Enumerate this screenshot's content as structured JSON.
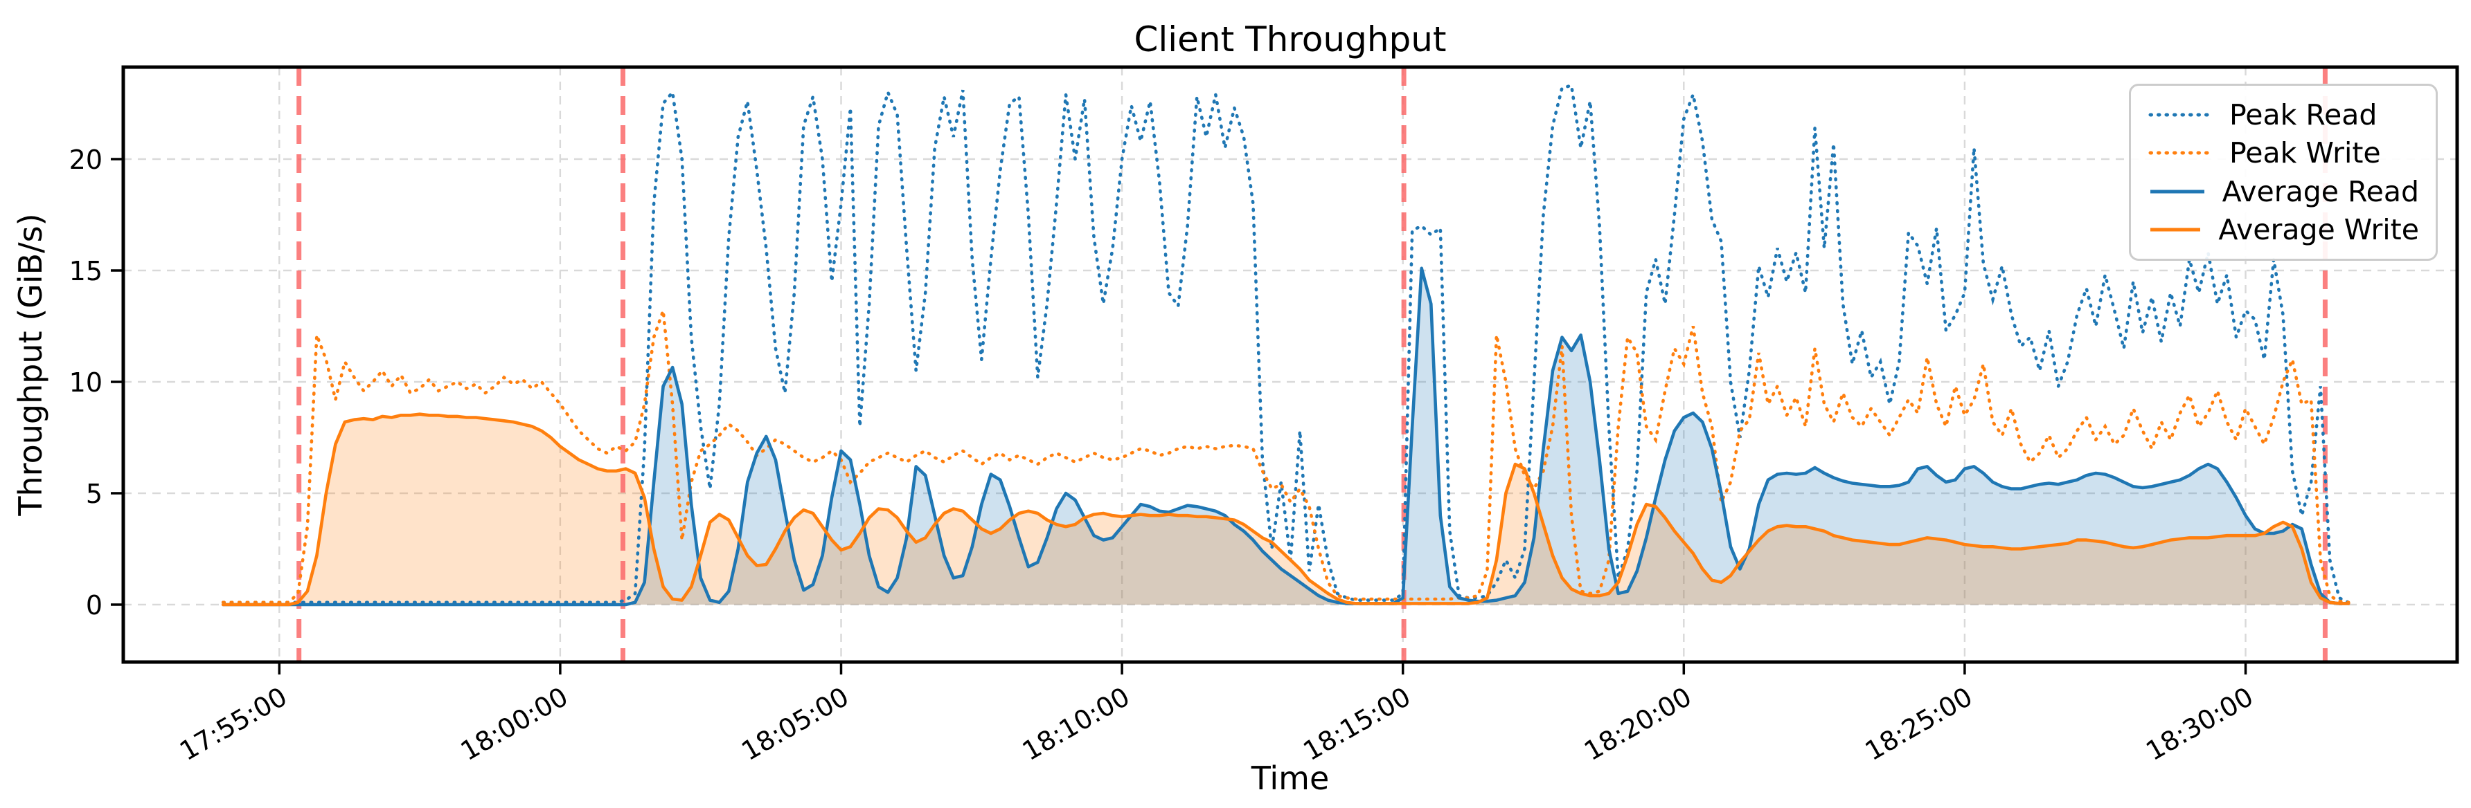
{
  "chart_data": {
    "type": "line",
    "title": "Client Throughput",
    "xlabel": "Time",
    "ylabel": "Throughput (GiB/s)",
    "grid": true,
    "legend_position": "upper right",
    "x_axis": {
      "start_time": "17:54:00",
      "step_seconds": 10,
      "range": [
        "17:52:15",
        "18:33:45"
      ],
      "ticks": [
        "17:55:00",
        "18:00:00",
        "18:05:00",
        "18:10:00",
        "18:15:00",
        "18:20:00",
        "18:25:00",
        "18:30:00"
      ]
    },
    "y_axis": {
      "min": -2.6,
      "max": 24.2,
      "ticks": [
        0,
        5,
        10,
        15,
        20
      ]
    },
    "event_lines": {
      "color": "#fb6a6a",
      "style": "dashed",
      "times": [
        "17:55:21",
        "18:01:07",
        "18:15:01",
        "18:31:25"
      ]
    },
    "series": [
      {
        "name": "Peak Read",
        "color": "#1f77b4",
        "style": "dotted",
        "fill": false,
        "values": [
          0.1,
          0.1,
          0.1,
          0.1,
          0.1,
          0.1,
          0.1,
          0.1,
          0.1,
          0.1,
          0.1,
          0.1,
          0.1,
          0.1,
          0.1,
          0.1,
          0.1,
          0.1,
          0.1,
          0.1,
          0.1,
          0.1,
          0.1,
          0.1,
          0.1,
          0.1,
          0.1,
          0.1,
          0.1,
          0.1,
          0.1,
          0.1,
          0.1,
          0.1,
          0.1,
          0.1,
          0.1,
          0.1,
          0.1,
          0.1,
          0.1,
          0.1,
          0.1,
          0.2,
          0.5,
          7,
          18,
          22.5,
          23.0,
          20,
          12,
          8,
          5.2,
          9,
          16.5,
          21.0,
          22.6,
          19.5,
          16,
          11.5,
          9.5,
          14,
          21.5,
          22.8,
          20,
          14.5,
          18,
          22.3,
          8.0,
          13.5,
          21.5,
          23.0,
          22.0,
          16,
          10.5,
          14,
          20.5,
          22.8,
          21,
          23.1,
          15.5,
          11,
          15.5,
          19.5,
          22.5,
          22.8,
          17.5,
          10.2,
          13.5,
          18,
          22.9,
          20,
          22.7,
          16.5,
          13.5,
          16.0,
          20.0,
          22.4,
          20.8,
          22.6,
          19,
          14,
          13.4,
          17,
          22.8,
          21,
          22.9,
          20.5,
          22.3,
          21,
          18,
          6.5,
          2.5,
          5.5,
          2.0,
          7.8,
          1.5,
          4.5,
          2.0,
          0.5,
          0.3,
          0.2,
          0.2,
          0.2,
          0.2,
          0.2,
          0.5,
          16.8,
          17.0,
          16.6,
          16.9,
          3.3,
          0.4,
          0.3,
          0.3,
          0.4,
          1.0,
          2.0,
          1.2,
          2.5,
          10,
          17.5,
          21.5,
          23.2,
          23.3,
          20.5,
          22.6,
          17,
          8,
          1.2,
          2.5,
          6,
          14,
          15.5,
          13.5,
          17.5,
          21.8,
          22.9,
          20.8,
          17.3,
          16.3,
          10,
          7.5,
          10.5,
          15.2,
          13.8,
          16,
          14.5,
          15.8,
          14,
          21.4,
          16,
          20.7,
          13.5,
          10.8,
          12.3,
          10.2,
          10.9,
          9.0,
          10.9,
          16.7,
          16.1,
          14.4,
          16.9,
          12.3,
          13.0,
          14.0,
          20.5,
          15.3,
          13.7,
          15.2,
          13.0,
          11.6,
          12.0,
          10.5,
          12.3,
          9.8,
          10.9,
          13.0,
          14.2,
          12.5,
          14.8,
          13.2,
          11.5,
          14.5,
          12.2,
          13.8,
          11.8,
          14.0,
          12.5,
          15.5,
          14.0,
          15.8,
          13.5,
          14.8,
          12.0,
          13.2,
          12.8,
          11.0,
          15.5,
          13.0,
          6.0,
          4.0,
          5.5,
          9.8,
          2.0,
          0.3,
          0.1
        ]
      },
      {
        "name": "Peak Write",
        "color": "#ff7f0e",
        "style": "dotted",
        "fill": false,
        "values": [
          0.1,
          0.1,
          0.1,
          0.1,
          0.1,
          0.1,
          0.1,
          0.1,
          0.5,
          3.5,
          12.1,
          11.0,
          9.2,
          10.9,
          10.2,
          9.6,
          10.0,
          10.5,
          9.8,
          10.3,
          9.5,
          9.7,
          10.1,
          9.6,
          9.8,
          10.0,
          9.7,
          9.9,
          9.5,
          9.8,
          10.2,
          9.9,
          10.1,
          9.7,
          10.0,
          9.5,
          9.0,
          8.4,
          7.8,
          7.4,
          7.0,
          6.8,
          7.1,
          6.9,
          7.3,
          9.0,
          12.0,
          13.2,
          9.0,
          2.9,
          5.5,
          6.9,
          7.2,
          7.6,
          8.1,
          7.8,
          7.3,
          6.7,
          7.0,
          7.4,
          7.2,
          6.9,
          6.6,
          6.4,
          6.6,
          6.9,
          6.5,
          5.5,
          5.9,
          6.4,
          6.6,
          6.8,
          6.6,
          6.4,
          6.7,
          6.9,
          6.6,
          6.4,
          6.7,
          6.9,
          6.6,
          6.3,
          6.6,
          6.8,
          6.5,
          6.7,
          6.5,
          6.3,
          6.6,
          6.8,
          6.6,
          6.4,
          6.6,
          6.8,
          6.6,
          6.5,
          6.6,
          6.8,
          7.0,
          6.9,
          6.7,
          6.8,
          7.0,
          7.1,
          7.0,
          7.1,
          7.0,
          7.1,
          7.15,
          7.1,
          7.0,
          6.0,
          5.2,
          5.4,
          4.6,
          5.2,
          4.4,
          2.5,
          1.0,
          0.4,
          0.3,
          0.25,
          0.25,
          0.25,
          0.25,
          0.25,
          0.25,
          0.25,
          0.25,
          0.25,
          0.25,
          0.25,
          0.3,
          0.3,
          0.4,
          1.5,
          12.1,
          10.0,
          7.0,
          5.8,
          5.2,
          6.0,
          8.0,
          11.6,
          4.0,
          0.6,
          0.5,
          0.6,
          2.0,
          8.0,
          12.0,
          11.3,
          8.0,
          7.4,
          9.6,
          11.5,
          10.8,
          12.5,
          9.5,
          8.0,
          4.6,
          5.5,
          7.8,
          8.3,
          11.3,
          9.0,
          9.8,
          8.5,
          9.3,
          8.0,
          11.5,
          9.0,
          8.2,
          9.5,
          8.4,
          8.0,
          8.8,
          8.2,
          7.6,
          8.4,
          9.2,
          8.6,
          11.1,
          9.0,
          8.0,
          9.8,
          8.5,
          9.2,
          10.8,
          8.2,
          7.6,
          8.8,
          7.2,
          6.4,
          6.8,
          7.6,
          6.6,
          7.0,
          7.8,
          8.4,
          7.4,
          8.0,
          7.2,
          7.6,
          8.8,
          7.8,
          7.0,
          8.2,
          7.4,
          8.6,
          9.4,
          8.0,
          8.6,
          9.6,
          8.2,
          7.4,
          8.8,
          8.0,
          7.2,
          8.4,
          10.0,
          11.0,
          9.0,
          9.2,
          2.0,
          0.4,
          0.15,
          0.1
        ]
      },
      {
        "name": "Average Read",
        "color": "#1f77b4",
        "style": "solid",
        "fill": true,
        "values": [
          0,
          0,
          0,
          0,
          0,
          0,
          0,
          0,
          0,
          0,
          0,
          0,
          0,
          0,
          0,
          0,
          0,
          0,
          0,
          0,
          0,
          0,
          0,
          0,
          0,
          0,
          0,
          0,
          0,
          0,
          0,
          0,
          0,
          0,
          0,
          0,
          0,
          0,
          0,
          0,
          0,
          0,
          0,
          0,
          0.1,
          1.0,
          5.5,
          9.8,
          10.65,
          9.0,
          4.5,
          1.2,
          0.2,
          0.1,
          0.6,
          2.5,
          5.5,
          6.8,
          7.55,
          6.5,
          4.2,
          2.0,
          0.65,
          0.9,
          2.2,
          4.8,
          6.9,
          6.5,
          4.5,
          2.2,
          0.8,
          0.55,
          1.2,
          3.0,
          6.2,
          5.8,
          4.0,
          2.2,
          1.2,
          1.3,
          2.6,
          4.5,
          5.85,
          5.6,
          4.4,
          3.0,
          1.7,
          1.9,
          3.0,
          4.3,
          5.0,
          4.7,
          3.9,
          3.1,
          2.9,
          3.0,
          3.5,
          4.0,
          4.5,
          4.4,
          4.2,
          4.15,
          4.3,
          4.45,
          4.4,
          4.3,
          4.2,
          4.0,
          3.6,
          3.3,
          2.9,
          2.4,
          2.0,
          1.6,
          1.3,
          1.0,
          0.7,
          0.4,
          0.2,
          0.1,
          0.05,
          0.05,
          0.05,
          0.05,
          0.05,
          0.05,
          0.3,
          8.0,
          15.1,
          13.5,
          4.0,
          0.8,
          0.3,
          0.2,
          0.15,
          0.15,
          0.2,
          0.3,
          0.4,
          1.0,
          3.0,
          7.0,
          10.5,
          12.0,
          11.4,
          12.1,
          10.0,
          6.5,
          2.5,
          0.5,
          0.6,
          1.5,
          3.0,
          4.8,
          6.5,
          7.8,
          8.4,
          8.6,
          8.2,
          7.0,
          5.0,
          2.6,
          1.6,
          2.5,
          4.5,
          5.6,
          5.85,
          5.9,
          5.85,
          5.9,
          6.15,
          5.9,
          5.7,
          5.55,
          5.45,
          5.4,
          5.35,
          5.3,
          5.3,
          5.35,
          5.5,
          6.1,
          6.2,
          5.8,
          5.5,
          5.6,
          6.1,
          6.2,
          5.9,
          5.5,
          5.3,
          5.2,
          5.2,
          5.3,
          5.4,
          5.45,
          5.4,
          5.5,
          5.6,
          5.8,
          5.9,
          5.85,
          5.7,
          5.5,
          5.3,
          5.25,
          5.3,
          5.4,
          5.5,
          5.6,
          5.8,
          6.1,
          6.3,
          6.1,
          5.5,
          4.8,
          4.0,
          3.4,
          3.2,
          3.2,
          3.3,
          3.6,
          3.4,
          1.8,
          0.5,
          0.1,
          0.05,
          0.05
        ]
      },
      {
        "name": "Average Write",
        "color": "#ff7f0e",
        "style": "solid",
        "fill": true,
        "values": [
          0,
          0,
          0,
          0,
          0,
          0,
          0,
          0,
          0.1,
          0.6,
          2.2,
          5.0,
          7.2,
          8.2,
          8.3,
          8.35,
          8.3,
          8.45,
          8.4,
          8.5,
          8.5,
          8.55,
          8.5,
          8.5,
          8.45,
          8.45,
          8.4,
          8.4,
          8.35,
          8.3,
          8.25,
          8.2,
          8.1,
          8.0,
          7.8,
          7.5,
          7.1,
          6.8,
          6.5,
          6.3,
          6.1,
          6.0,
          6.0,
          6.1,
          5.9,
          4.8,
          2.5,
          0.8,
          0.25,
          0.2,
          0.8,
          2.2,
          3.7,
          4.05,
          3.8,
          3.0,
          2.2,
          1.75,
          1.8,
          2.5,
          3.3,
          3.9,
          4.25,
          4.1,
          3.5,
          2.9,
          2.45,
          2.6,
          3.2,
          3.9,
          4.3,
          4.25,
          3.9,
          3.3,
          2.8,
          3.0,
          3.6,
          4.1,
          4.3,
          4.2,
          3.8,
          3.4,
          3.2,
          3.4,
          3.8,
          4.1,
          4.2,
          4.1,
          3.8,
          3.6,
          3.5,
          3.6,
          3.9,
          4.05,
          4.1,
          4.0,
          3.95,
          4.0,
          4.05,
          4.0,
          4.0,
          4.05,
          4.0,
          4.0,
          3.95,
          3.95,
          3.9,
          3.85,
          3.8,
          3.6,
          3.3,
          3.0,
          2.8,
          2.4,
          2.0,
          1.6,
          1.1,
          0.8,
          0.5,
          0.25,
          0.1,
          0.05,
          0.05,
          0.05,
          0.05,
          0.05,
          0.05,
          0.05,
          0.05,
          0.05,
          0.05,
          0.05,
          0.05,
          0.05,
          0.1,
          0.3,
          2.0,
          5.0,
          6.3,
          6.1,
          5.0,
          3.6,
          2.2,
          1.2,
          0.7,
          0.5,
          0.4,
          0.4,
          0.5,
          1.0,
          2.2,
          3.6,
          4.5,
          4.4,
          3.9,
          3.3,
          2.8,
          2.3,
          1.6,
          1.1,
          1.0,
          1.3,
          1.9,
          2.4,
          2.9,
          3.3,
          3.5,
          3.55,
          3.5,
          3.5,
          3.4,
          3.3,
          3.1,
          3.0,
          2.9,
          2.85,
          2.8,
          2.75,
          2.7,
          2.7,
          2.8,
          2.9,
          3.0,
          2.95,
          2.9,
          2.8,
          2.7,
          2.65,
          2.6,
          2.6,
          2.55,
          2.5,
          2.5,
          2.55,
          2.6,
          2.65,
          2.7,
          2.75,
          2.9,
          2.9,
          2.85,
          2.8,
          2.7,
          2.6,
          2.55,
          2.6,
          2.7,
          2.8,
          2.9,
          2.95,
          3.0,
          3.0,
          3.0,
          3.05,
          3.1,
          3.1,
          3.1,
          3.1,
          3.2,
          3.5,
          3.7,
          3.5,
          2.5,
          1.0,
          0.3,
          0.1,
          0.05,
          0.05
        ]
      }
    ]
  }
}
